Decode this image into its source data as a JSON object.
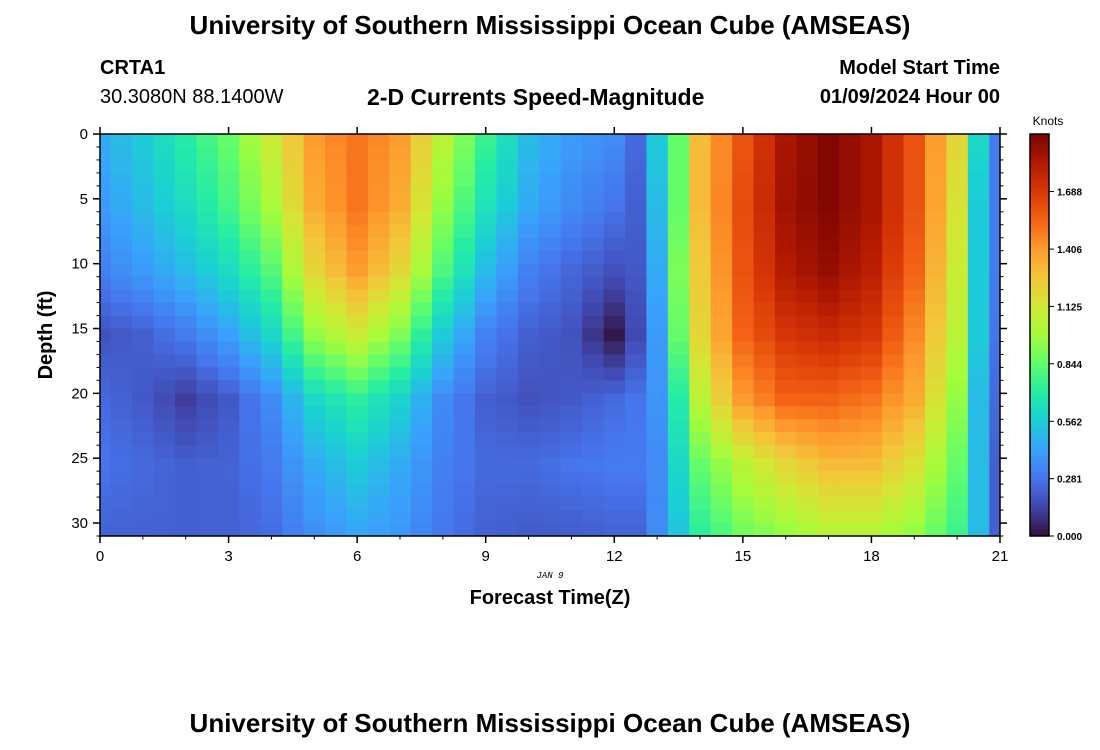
{
  "header": {
    "title": "University of Southern Mississippi Ocean Cube (AMSEAS)",
    "station_id": "CRTA1",
    "station_coords": "30.3080N  88.1400W",
    "chart_title": "2-D Currents Speed-Magnitude",
    "model_start_label": "Model Start Time",
    "model_start_value": "01/09/2024 Hour 00"
  },
  "footer": {
    "title": "University of Southern Mississippi Ocean Cube (AMSEAS)"
  },
  "colors": {
    "background": "#ffffff",
    "axis": "#000000",
    "colormap": [
      "#30123b",
      "#4145ab",
      "#4675ed",
      "#39a2fc",
      "#1bcfd4",
      "#24eca6",
      "#61fc6c",
      "#a4fc3b",
      "#d1e834",
      "#f3c63a",
      "#fe9b2d",
      "#f36315",
      "#d93806",
      "#b11901",
      "#7a0402"
    ]
  },
  "chart_data": {
    "type": "heatmap",
    "title": "2-D Currents Speed-Magnitude",
    "xlabel": "Forecast Time(Z)",
    "ylabel": "Depth (ft)",
    "x_range": [
      0,
      21
    ],
    "y_range": [
      0,
      31
    ],
    "y_inverted": true,
    "x_ticks": [
      "0",
      "3",
      "6",
      "9",
      "12",
      "15",
      "18",
      "21"
    ],
    "y_ticks": [
      "0",
      "5",
      "10",
      "15",
      "20",
      "25",
      "30"
    ],
    "date_label": "JAN 9",
    "colorbar": {
      "label": "Knots",
      "range": [
        0,
        1.97
      ],
      "ticks": [
        "0.000",
        "0.281",
        "0.562",
        "0.844",
        "1.125",
        "1.406",
        "1.688"
      ]
    },
    "forecast_hours": [
      0,
      0.5,
      1,
      1.5,
      2,
      2.5,
      3,
      3.5,
      4,
      4.5,
      5,
      5.5,
      6,
      6.5,
      7,
      7.5,
      8,
      8.5,
      9,
      9.5,
      10,
      10.5,
      11,
      11.5,
      12,
      12.5,
      13,
      13.5,
      14,
      14.5,
      15,
      15.5,
      16,
      16.5,
      17,
      17.5,
      18,
      18.5,
      19,
      19.5,
      20,
      20.5,
      21
    ],
    "depth_levels_ft": [
      0,
      1,
      2,
      3,
      4,
      5,
      6,
      7,
      8,
      9,
      10,
      11,
      12,
      13,
      14,
      15,
      16,
      17,
      18,
      19,
      20,
      21,
      22,
      23,
      24,
      25,
      26,
      27,
      28,
      29,
      30
    ],
    "speed_anchor_hours": [
      0,
      1,
      2,
      3,
      4,
      5,
      6,
      7,
      8,
      9,
      10,
      11,
      12,
      12.5,
      13,
      13.5,
      14,
      15,
      16,
      17,
      18,
      19,
      20,
      20.5,
      21
    ],
    "speed_anchor_depths_ft": [
      0,
      5,
      10,
      15,
      20,
      25,
      31
    ],
    "speed_knots": [
      [
        0.45,
        0.55,
        0.7,
        0.85,
        1.1,
        1.4,
        1.5,
        1.4,
        1.05,
        0.75,
        0.5,
        0.4,
        0.35,
        0.25,
        0.55,
        0.85,
        1.3,
        1.6,
        1.85,
        1.95,
        1.85,
        1.6,
        1.2,
        0.6,
        0.3
      ],
      [
        0.4,
        0.5,
        0.62,
        0.78,
        1.0,
        1.35,
        1.5,
        1.35,
        0.95,
        0.65,
        0.45,
        0.35,
        0.28,
        0.22,
        0.5,
        0.85,
        1.3,
        1.62,
        1.87,
        1.95,
        1.85,
        1.6,
        1.15,
        0.55,
        0.3
      ],
      [
        0.32,
        0.4,
        0.5,
        0.62,
        0.82,
        1.2,
        1.4,
        1.2,
        0.8,
        0.5,
        0.32,
        0.24,
        0.18,
        0.2,
        0.45,
        0.9,
        1.25,
        1.6,
        1.82,
        1.9,
        1.8,
        1.55,
        1.1,
        0.55,
        0.3
      ],
      [
        0.18,
        0.22,
        0.3,
        0.42,
        0.6,
        0.95,
        1.1,
        0.9,
        0.55,
        0.32,
        0.22,
        0.18,
        0.02,
        0.15,
        0.4,
        0.85,
        1.2,
        1.55,
        1.7,
        1.75,
        1.7,
        1.45,
        1.05,
        0.55,
        0.28
      ],
      [
        0.25,
        0.2,
        0.12,
        0.2,
        0.35,
        0.6,
        0.72,
        0.58,
        0.35,
        0.22,
        0.18,
        0.2,
        0.25,
        0.28,
        0.38,
        0.7,
        1.05,
        1.4,
        1.55,
        1.55,
        1.5,
        1.35,
        0.95,
        0.5,
        0.25
      ],
      [
        0.28,
        0.25,
        0.22,
        0.23,
        0.3,
        0.45,
        0.55,
        0.45,
        0.32,
        0.25,
        0.25,
        0.28,
        0.3,
        0.3,
        0.35,
        0.6,
        0.85,
        1.05,
        1.2,
        1.3,
        1.3,
        1.15,
        0.85,
        0.5,
        0.22
      ],
      [
        0.22,
        0.22,
        0.22,
        0.22,
        0.25,
        0.35,
        0.42,
        0.38,
        0.28,
        0.22,
        0.2,
        0.2,
        0.22,
        0.22,
        0.35,
        0.52,
        0.7,
        0.85,
        0.92,
        1.0,
        1.0,
        0.92,
        0.75,
        0.5,
        0.22
      ]
    ]
  }
}
